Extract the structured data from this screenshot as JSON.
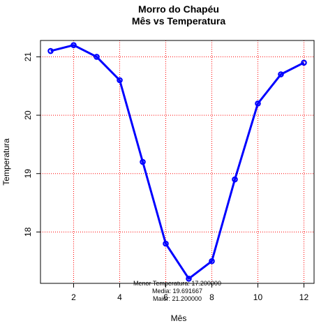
{
  "chart_data": {
    "type": "line",
    "title": "Morro do Chapéu",
    "subtitle": "Mês vs Temperatura",
    "xlabel": "Mês",
    "ylabel": "Temperatura",
    "x": [
      1,
      2,
      3,
      4,
      5,
      6,
      7,
      8,
      9,
      10,
      11,
      12
    ],
    "series": [
      {
        "values": [
          21.1,
          21.2,
          21.0,
          20.6,
          19.2,
          17.8,
          17.2,
          17.5,
          18.9,
          20.2,
          20.7,
          20.9
        ]
      }
    ],
    "xlim": [
      0.56,
      12.44
    ],
    "ylim": [
      17.12,
      21.28
    ],
    "x_ticks": [
      2,
      4,
      6,
      8,
      10,
      12
    ],
    "y_ticks": [
      18,
      19,
      20,
      21
    ],
    "grid": true,
    "grid_color": "#ff0000",
    "line_color": "#0000ff",
    "annotations": [
      "Menor Temperatura: 17.200000",
      "Media: 19.691667",
      "Maior: 21.200000"
    ]
  }
}
